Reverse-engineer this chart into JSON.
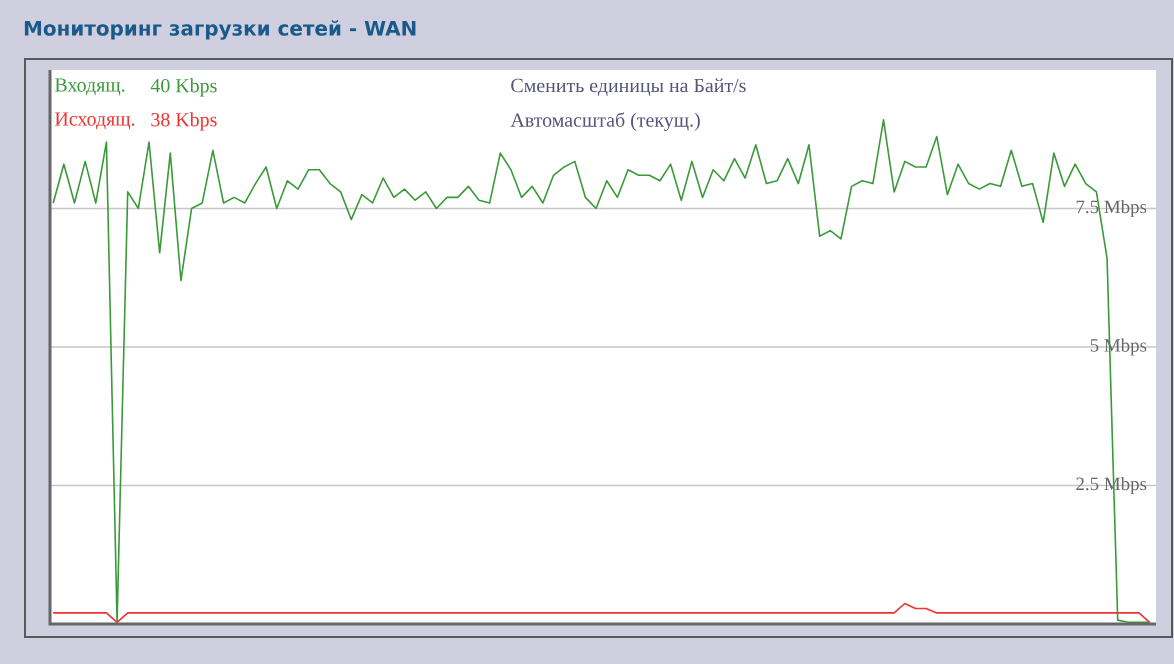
{
  "chart_data": {
    "type": "line",
    "title": "Мониторинг загрузки сетей - WAN",
    "categories": [
      null,
      null,
      null,
      null,
      null,
      null,
      null,
      null,
      null,
      null,
      null,
      null,
      null,
      null,
      null,
      null,
      null,
      null,
      null,
      null,
      null,
      null,
      null,
      null,
      null,
      null,
      null,
      null,
      null,
      null,
      null,
      null,
      null,
      null,
      null,
      null,
      null,
      null,
      null,
      null,
      null,
      null,
      null,
      null,
      null,
      null,
      null,
      null,
      null,
      null,
      null,
      null,
      null,
      null,
      null,
      null,
      null,
      null,
      null,
      null,
      null,
      null,
      null,
      null,
      null,
      null,
      null,
      null,
      null,
      null,
      null,
      null,
      null,
      null,
      null,
      null,
      null,
      null,
      null,
      null,
      null,
      null,
      null,
      null,
      null,
      null,
      null,
      null,
      null,
      null,
      null,
      null,
      null,
      null,
      null,
      null,
      null,
      null,
      null,
      null,
      null,
      null,
      null,
      null
    ],
    "series": [
      {
        "name": "Входящ.",
        "color": "#3a9a3a",
        "values": [
          7.6,
          8.3,
          7.6,
          8.35,
          7.6,
          8.7,
          0.05,
          7.8,
          7.5,
          8.7,
          6.7,
          8.5,
          6.2,
          7.5,
          7.6,
          8.55,
          7.6,
          7.7,
          7.6,
          7.95,
          8.25,
          7.5,
          8.0,
          7.85,
          8.2,
          8.2,
          7.95,
          7.8,
          7.3,
          7.75,
          7.6,
          8.05,
          7.7,
          7.85,
          7.65,
          7.8,
          7.5,
          7.7,
          7.7,
          7.9,
          7.65,
          7.6,
          8.5,
          8.2,
          7.7,
          7.9,
          7.6,
          8.1,
          8.25,
          8.35,
          7.7,
          7.5,
          8.0,
          7.7,
          8.2,
          8.1,
          8.1,
          8.0,
          8.3,
          7.65,
          8.35,
          7.7,
          8.2,
          8.0,
          8.4,
          8.05,
          8.65,
          7.95,
          8.0,
          8.4,
          7.95,
          8.65,
          7.0,
          7.1,
          6.95,
          7.9,
          8.0,
          7.95,
          9.1,
          7.8,
          8.35,
          8.25,
          8.25,
          8.8,
          7.75,
          8.3,
          7.95,
          7.85,
          7.95,
          7.9,
          8.55,
          7.9,
          7.95,
          7.25,
          8.5,
          7.9,
          8.3,
          7.95,
          7.8,
          6.6,
          0.07,
          0.03,
          0.03,
          0.03
        ]
      },
      {
        "name": "Исходящ.",
        "color": "#ee3333",
        "values": [
          0.2,
          0.2,
          0.2,
          0.2,
          0.2,
          0.2,
          0.03,
          0.2,
          0.2,
          0.2,
          0.2,
          0.2,
          0.2,
          0.2,
          0.2,
          0.2,
          0.2,
          0.2,
          0.2,
          0.2,
          0.2,
          0.2,
          0.2,
          0.2,
          0.2,
          0.2,
          0.2,
          0.2,
          0.2,
          0.2,
          0.2,
          0.2,
          0.2,
          0.2,
          0.2,
          0.2,
          0.2,
          0.2,
          0.2,
          0.2,
          0.2,
          0.2,
          0.2,
          0.2,
          0.2,
          0.2,
          0.2,
          0.2,
          0.2,
          0.2,
          0.2,
          0.2,
          0.2,
          0.2,
          0.2,
          0.2,
          0.2,
          0.2,
          0.2,
          0.2,
          0.2,
          0.2,
          0.2,
          0.2,
          0.2,
          0.2,
          0.2,
          0.2,
          0.2,
          0.2,
          0.2,
          0.2,
          0.2,
          0.2,
          0.2,
          0.2,
          0.2,
          0.2,
          0.2,
          0.2,
          0.37,
          0.28,
          0.28,
          0.2,
          0.2,
          0.2,
          0.2,
          0.2,
          0.2,
          0.2,
          0.2,
          0.2,
          0.2,
          0.2,
          0.2,
          0.2,
          0.2,
          0.2,
          0.2,
          0.2,
          0.2,
          0.2,
          0.2,
          0.03
        ]
      }
    ],
    "ylim": [
      0,
      10
    ],
    "yticks": [
      {
        "value": 2.5,
        "label": "2.5 Mbps"
      },
      {
        "value": 5,
        "label": "5 Mbps"
      },
      {
        "value": 7.5,
        "label": "7.5 Mbps"
      }
    ],
    "grid": "y",
    "legend": "top left",
    "marker": "none",
    "line_style": "solid",
    "annotations": [
      "40 Kbps",
      "38 Kbps",
      "Сменить единицы на Байт/s",
      "Автомасштаб (текущ.)"
    ]
  }
}
